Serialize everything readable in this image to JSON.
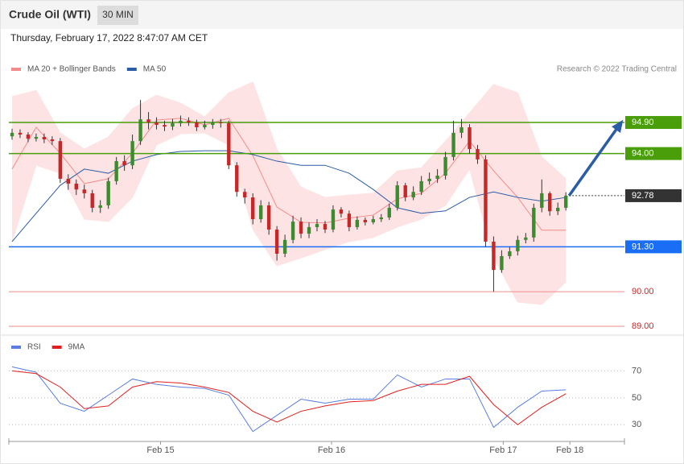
{
  "chart_data": [
    {
      "type": "candlestick",
      "title": "Crude Oil (WTI)",
      "timeframe": "30 MIN",
      "subtitle": "Thursday, February 17, 2022 8:47:07 AM CET",
      "credit": "Research © 2022 Trading Central",
      "up_color": "#3d8b2f",
      "down_color": "#c62828",
      "x": [
        0,
        1,
        2,
        3,
        4,
        5,
        6,
        7,
        8,
        9,
        10,
        11,
        12,
        13,
        14,
        15,
        16,
        17,
        18,
        19,
        20,
        21,
        22,
        23,
        24,
        25,
        26,
        27,
        28,
        29,
        30,
        31,
        32,
        33,
        34,
        35,
        36,
        37,
        38,
        39,
        40,
        41,
        42,
        43,
        44,
        45,
        46,
        47,
        48,
        49,
        50,
        51,
        52,
        53,
        54,
        55,
        56,
        57,
        58,
        59,
        60,
        61,
        62,
        63,
        64,
        65,
        66,
        67,
        68,
        69
      ],
      "open": [
        94.5,
        94.6,
        94.55,
        94.43,
        94.48,
        94.41,
        94.36,
        93.27,
        93.13,
        92.96,
        92.85,
        92.43,
        92.5,
        93.2,
        93.78,
        93.66,
        94.36,
        94.99,
        94.9,
        94.83,
        94.78,
        94.88,
        94.95,
        94.9,
        94.76,
        94.83,
        94.9,
        94.88,
        93.66,
        92.89,
        92.73,
        92.1,
        92.5,
        91.8,
        91.1,
        91.5,
        92.03,
        91.68,
        91.87,
        91.96,
        91.8,
        92.38,
        92.26,
        91.87,
        92.08,
        92.01,
        92.1,
        92.15,
        92.43,
        93.08,
        92.73,
        92.89,
        93.2,
        93.27,
        93.36,
        93.9,
        94.6,
        94.76,
        94.13,
        93.83,
        91.45,
        90.63,
        91.03,
        91.17,
        91.5,
        91.57,
        92.43,
        92.85,
        92.33,
        92.43
      ],
      "high": [
        94.72,
        94.7,
        94.62,
        94.58,
        94.58,
        94.5,
        94.45,
        93.4,
        93.25,
        93.1,
        92.95,
        92.65,
        93.3,
        93.9,
        93.95,
        94.55,
        95.55,
        95.2,
        95.05,
        94.95,
        95.0,
        95.1,
        95.05,
        94.98,
        94.95,
        95.0,
        95.0,
        94.95,
        93.75,
        92.98,
        92.85,
        92.65,
        92.6,
        91.9,
        91.65,
        92.2,
        92.15,
        92.0,
        92.1,
        92.05,
        92.5,
        92.45,
        92.35,
        92.18,
        92.15,
        92.2,
        92.25,
        92.55,
        93.2,
        93.15,
        93.05,
        93.35,
        93.45,
        93.55,
        94.05,
        94.95,
        95.0,
        94.85,
        94.25,
        93.95,
        91.6,
        91.2,
        91.3,
        91.62,
        91.7,
        92.55,
        93.25,
        92.9,
        92.58,
        92.88
      ],
      "low": [
        94.4,
        94.45,
        94.33,
        94.35,
        94.3,
        94.25,
        93.15,
        92.95,
        92.8,
        92.7,
        92.3,
        92.28,
        92.4,
        93.1,
        93.5,
        93.55,
        94.25,
        94.7,
        94.7,
        94.65,
        94.68,
        94.78,
        94.8,
        94.65,
        94.7,
        94.72,
        94.75,
        93.55,
        92.75,
        92.55,
        91.95,
        92.0,
        91.65,
        90.9,
        91.0,
        91.4,
        91.55,
        91.55,
        91.75,
        91.7,
        91.72,
        92.15,
        91.75,
        91.8,
        91.92,
        91.95,
        92.02,
        92.08,
        92.35,
        92.62,
        92.65,
        92.8,
        93.1,
        93.15,
        93.25,
        93.8,
        94.45,
        94.0,
        93.7,
        91.3,
        90.0,
        90.55,
        90.95,
        91.05,
        91.4,
        91.45,
        92.3,
        92.2,
        92.22,
        92.35
      ],
      "close": [
        94.6,
        94.55,
        94.43,
        94.48,
        94.41,
        94.36,
        93.27,
        93.13,
        92.96,
        92.85,
        92.43,
        92.5,
        93.2,
        93.78,
        93.66,
        94.36,
        94.99,
        94.9,
        94.83,
        94.78,
        94.88,
        94.95,
        94.9,
        94.76,
        94.83,
        94.9,
        94.88,
        93.66,
        92.89,
        92.73,
        92.1,
        92.5,
        91.8,
        91.1,
        91.5,
        92.03,
        91.68,
        91.87,
        91.96,
        91.8,
        92.38,
        92.26,
        91.87,
        92.08,
        92.01,
        92.1,
        92.15,
        92.43,
        93.08,
        92.73,
        92.89,
        93.2,
        93.27,
        93.36,
        93.9,
        94.6,
        94.76,
        94.13,
        93.83,
        91.45,
        90.63,
        91.03,
        91.17,
        91.5,
        91.57,
        92.43,
        92.85,
        92.33,
        92.43,
        92.78
      ],
      "lines": [
        {
          "name": "MA 20 + Bollinger Bands",
          "color": "#f28b8b",
          "band_color": "#fde3e3",
          "x": [
            0,
            3,
            6,
            9,
            12,
            15,
            18,
            21,
            24,
            27,
            30,
            33,
            36,
            39,
            42,
            45,
            48,
            51,
            54,
            57,
            60,
            63,
            66,
            69
          ],
          "values": [
            93.55,
            94.76,
            94.01,
            93.13,
            93.27,
            94.01,
            94.97,
            95.02,
            94.83,
            95.02,
            93.94,
            92.45,
            92.01,
            91.99,
            92.13,
            92.22,
            92.69,
            92.85,
            93.43,
            94.36,
            93.5,
            92.73,
            91.78,
            91.78
          ],
          "upper": [
            95.65,
            95.83,
            94.6,
            94.13,
            94.48,
            95.3,
            95.69,
            95.46,
            95.06,
            95.76,
            96.07,
            94.13,
            93.03,
            92.73,
            92.8,
            92.85,
            93.5,
            93.59,
            94.36,
            95.18,
            96.0,
            95.76,
            93.9,
            93.27
          ],
          "lower": [
            91.45,
            93.66,
            93.43,
            92.1,
            92.03,
            92.73,
            94.25,
            94.57,
            94.6,
            94.25,
            91.8,
            90.75,
            90.98,
            91.22,
            91.45,
            91.57,
            91.87,
            92.1,
            92.5,
            93.55,
            90.98,
            89.7,
            89.63,
            90.28
          ]
        },
        {
          "name": "MA 50",
          "color": "#2b5ca6",
          "x": [
            0,
            3,
            6,
            9,
            12,
            15,
            18,
            21,
            24,
            27,
            30,
            33,
            36,
            39,
            42,
            45,
            48,
            51,
            54,
            57,
            60,
            63,
            66,
            69
          ],
          "values": [
            91.45,
            92.27,
            93.08,
            93.55,
            93.43,
            93.78,
            93.97,
            94.06,
            94.08,
            94.08,
            93.97,
            93.78,
            93.66,
            93.66,
            93.43,
            92.96,
            92.43,
            92.27,
            92.34,
            92.73,
            92.89,
            92.73,
            92.62,
            92.73
          ]
        }
      ],
      "levels": [
        {
          "value": 94.9,
          "label": "94.90",
          "color": "#4a9e0a",
          "boxed": true
        },
        {
          "value": 94.0,
          "label": "94.00",
          "color": "#4a9e0a",
          "boxed": true
        },
        {
          "value": 92.78,
          "color": "#333333",
          "boxed": true,
          "dotted": true
        },
        {
          "value": 91.3,
          "label": "91.30",
          "color": "#1a6ef5",
          "boxed": true
        },
        {
          "value": 90.0,
          "label": "90.00",
          "color": "#f08a8a",
          "boxed": false
        },
        {
          "value": 89.0,
          "label": "89.00",
          "color": "#f08a8a",
          "boxed": false
        }
      ],
      "arrow_color": "#2b5ca6",
      "xlim": [
        -0.4,
        76.3
      ],
      "ylim": [
        88.79,
        96.23
      ]
    },
    {
      "type": "line",
      "series": [
        {
          "name": "RSI",
          "color": "#5b7fe0",
          "x": [
            0,
            3,
            6,
            9,
            12,
            15,
            18,
            21,
            24,
            27,
            30,
            33,
            36,
            39,
            42,
            45,
            48,
            51,
            54,
            57,
            60,
            63,
            66,
            69
          ],
          "values": [
            73,
            69,
            46,
            40,
            52,
            64,
            60,
            58,
            57,
            52,
            25,
            37,
            49,
            46,
            49,
            49,
            67,
            58,
            64,
            64,
            28,
            43,
            55,
            56
          ]
        },
        {
          "name": "9MA",
          "color": "#e02020",
          "x": [
            0,
            3,
            6,
            9,
            12,
            15,
            18,
            21,
            24,
            27,
            30,
            33,
            36,
            39,
            42,
            45,
            48,
            51,
            54,
            57,
            60,
            63,
            66,
            69
          ],
          "values": [
            70,
            68,
            58,
            42,
            44,
            58,
            62,
            61,
            58,
            54,
            40,
            32,
            40,
            44,
            47,
            48,
            55,
            60,
            60,
            66,
            45,
            30,
            43,
            53
          ]
        }
      ],
      "xlim": [
        -0.4,
        76.3
      ],
      "ylim": [
        20,
        90
      ],
      "yticks": [
        30,
        50,
        70
      ],
      "xticks": [
        {
          "value": 18.5,
          "label": "Feb 15"
        },
        {
          "value": 39.8,
          "label": "Feb 16"
        },
        {
          "value": 61.2,
          "label": "Feb 17"
        },
        {
          "value": 69.5,
          "label": "Feb 18"
        }
      ]
    }
  ]
}
